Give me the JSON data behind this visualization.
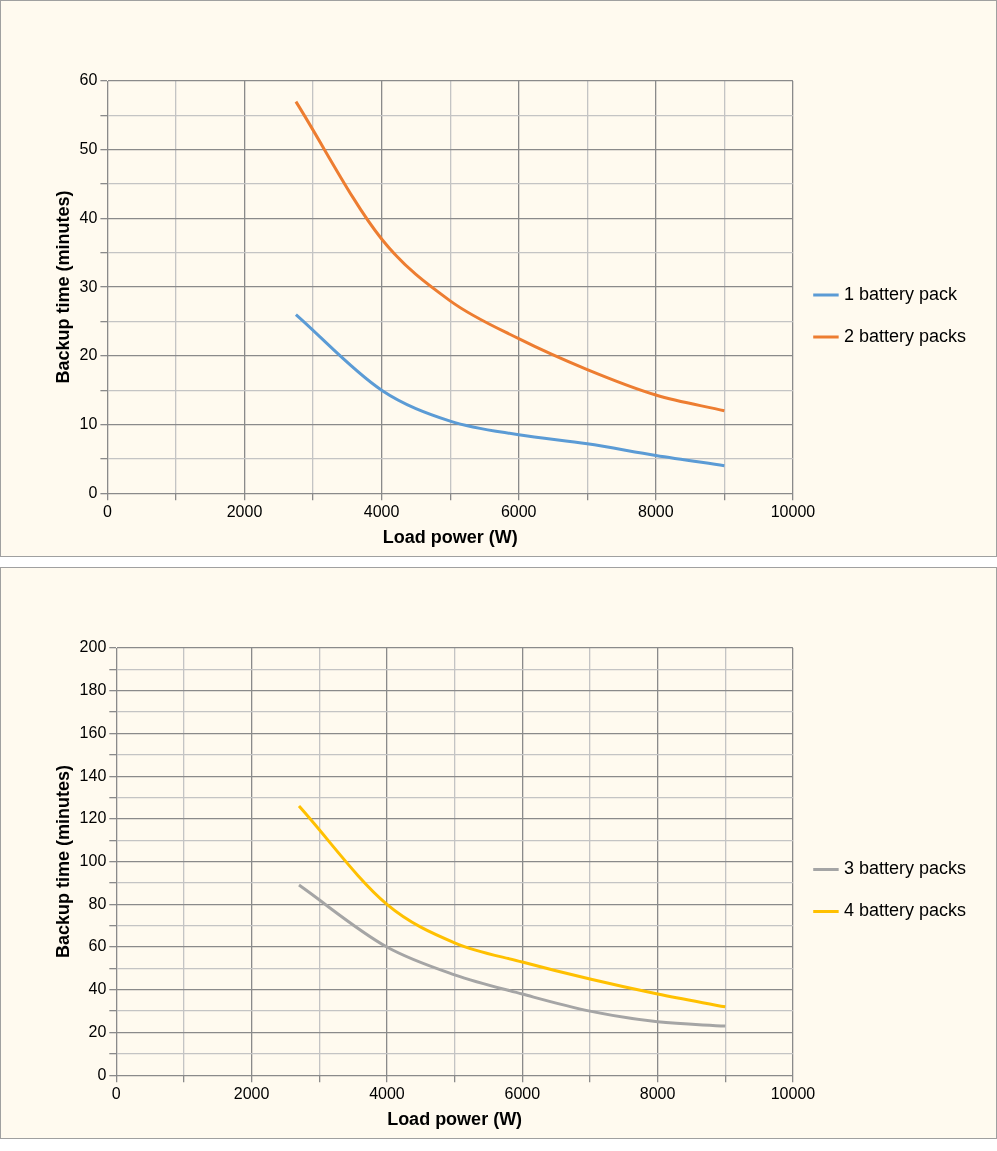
{
  "chart_data": [
    {
      "type": "line",
      "xlabel": "Load power (W)",
      "ylabel": "Backup time (minutes)",
      "xlim": [
        0,
        10000
      ],
      "ylim": [
        0,
        60
      ],
      "xticks": [
        0,
        {
          "value": 1000,
          "label": null
        },
        2000,
        {
          "value": 3000,
          "label": null
        },
        4000,
        {
          "value": 5000,
          "label": null
        },
        6000,
        {
          "value": 7000,
          "label": null
        },
        8000,
        {
          "value": 9000,
          "label": null
        },
        10000
      ],
      "yticks": [
        0,
        {
          "value": 5,
          "label": null
        },
        10,
        {
          "value": 15,
          "label": null
        },
        20,
        {
          "value": 25,
          "label": null
        },
        30,
        {
          "value": 35,
          "label": null
        },
        40,
        {
          "value": 45,
          "label": null
        },
        50,
        {
          "value": 55,
          "label": null
        },
        60
      ],
      "grid": true,
      "legend": "right",
      "marker": "none",
      "line_style": "solid",
      "x": [
        2750,
        4000,
        5000,
        6000,
        7000,
        8000,
        9000
      ],
      "series": [
        {
          "name": "1 battery pack",
          "color": "#5b9bd5",
          "values": [
            26,
            15,
            10.5,
            8.5,
            7.2,
            5.5,
            4
          ]
        },
        {
          "name": "2 battery packs",
          "color": "#ed7d31",
          "values": [
            57,
            37,
            28,
            22.5,
            18,
            14.3,
            12
          ]
        }
      ]
    },
    {
      "type": "line",
      "xlabel": "Load power (W)",
      "ylabel": "Backup time (minutes)",
      "xlim": [
        0,
        10000
      ],
      "ylim": [
        0,
        200
      ],
      "xticks": [
        0,
        {
          "value": 1000,
          "label": null
        },
        2000,
        {
          "value": 3000,
          "label": null
        },
        4000,
        {
          "value": 5000,
          "label": null
        },
        6000,
        {
          "value": 7000,
          "label": null
        },
        8000,
        {
          "value": 9000,
          "label": null
        },
        10000
      ],
      "yticks": [
        0,
        {
          "value": 10,
          "label": null
        },
        20,
        {
          "value": 30,
          "label": null
        },
        40,
        {
          "value": 50,
          "label": null
        },
        60,
        {
          "value": 70,
          "label": null
        },
        80,
        {
          "value": 90,
          "label": null
        },
        100,
        {
          "value": 110,
          "label": null
        },
        120,
        {
          "value": 130,
          "label": null
        },
        140,
        {
          "value": 150,
          "label": null
        },
        160,
        {
          "value": 170,
          "label": null
        },
        180,
        {
          "value": 190,
          "label": null
        },
        200
      ],
      "grid": true,
      "legend": "right",
      "marker": "none",
      "line_style": "solid",
      "x": [
        2700,
        4000,
        5000,
        6000,
        7000,
        8000,
        9000
      ],
      "series": [
        {
          "name": "3 battery packs",
          "color": "#a5a5a5",
          "values": [
            89,
            60,
            47,
            38,
            30,
            25,
            23
          ]
        },
        {
          "name": "4 battery packs",
          "color": "#ffc000",
          "values": [
            126,
            80,
            62,
            53,
            45,
            38,
            32
          ]
        }
      ]
    }
  ]
}
